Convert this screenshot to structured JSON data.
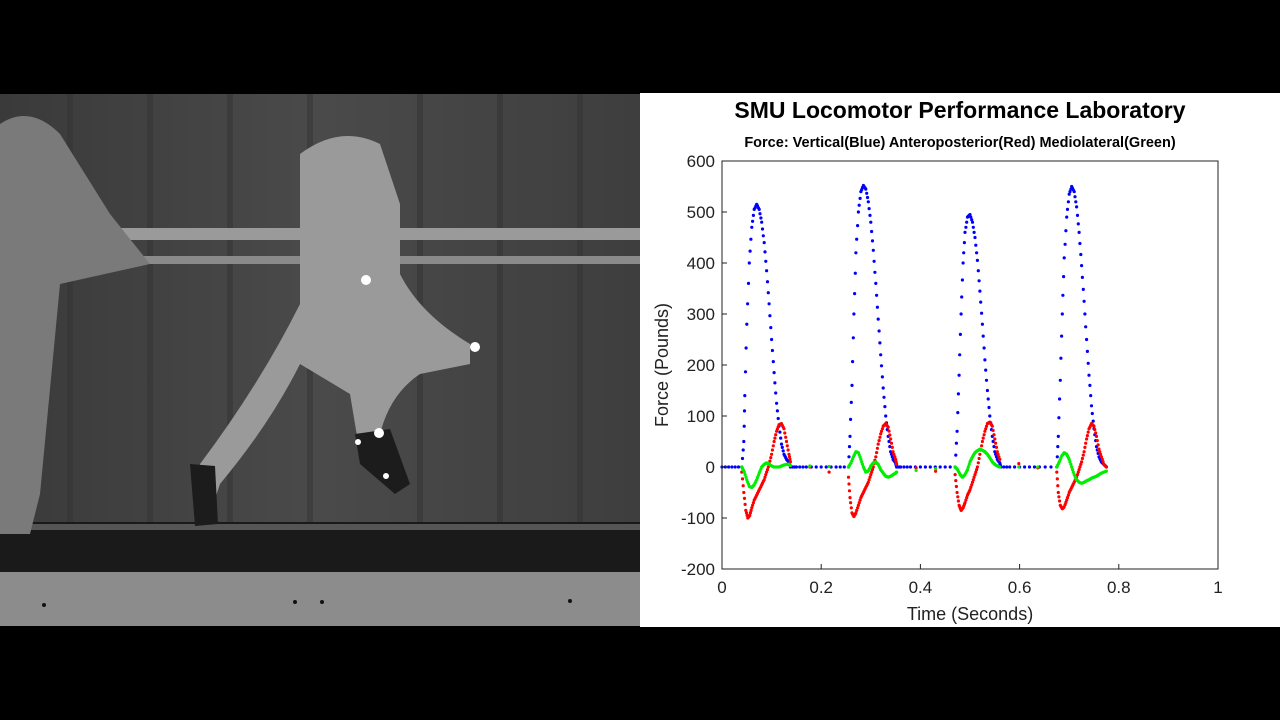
{
  "video": {
    "description_icon": "runner-video-frame-icon",
    "colors": {
      "background": "#2a2a2a",
      "marker": "#ffffff"
    }
  },
  "chart_data": {
    "type": "scatter",
    "title": "SMU Locomotor Performance Laboratory",
    "subtitle": "Force: Vertical(Blue) Anteroposterior(Red) Mediolateral(Green)",
    "xlabel": "Time (Seconds)",
    "ylabel": "Force (Pounds)",
    "xlim": [
      0,
      1
    ],
    "ylim": [
      -200,
      600
    ],
    "xticks": [
      "0",
      "0.2",
      "0.4",
      "0.6",
      "0.8",
      "1"
    ],
    "yticks": [
      "-200",
      "-100",
      "0",
      "100",
      "200",
      "300",
      "400",
      "500",
      "600"
    ],
    "grid": false,
    "series": [
      {
        "color": "#0000ff",
        "x": [
          0.0,
          0.02,
          0.04,
          0.044,
          0.046,
          0.05,
          0.055,
          0.06,
          0.065,
          0.07,
          0.075,
          0.08,
          0.085,
          0.09,
          0.095,
          0.1,
          0.105,
          0.11,
          0.115,
          0.12,
          0.125,
          0.13,
          0.135,
          0.138,
          0.15,
          0.17,
          0.2,
          0.23,
          0.255,
          0.258,
          0.262,
          0.266,
          0.27,
          0.275,
          0.28,
          0.285,
          0.29,
          0.295,
          0.3,
          0.305,
          0.31,
          0.315,
          0.32,
          0.325,
          0.33,
          0.335,
          0.34,
          0.345,
          0.35,
          0.352,
          0.36,
          0.38,
          0.41,
          0.44,
          0.47,
          0.474,
          0.478,
          0.482,
          0.486,
          0.49,
          0.495,
          0.5,
          0.505,
          0.51,
          0.515,
          0.52,
          0.525,
          0.53,
          0.535,
          0.54,
          0.545,
          0.55,
          0.555,
          0.56,
          0.562,
          0.58,
          0.61,
          0.64,
          0.675,
          0.678,
          0.682,
          0.686,
          0.69,
          0.695,
          0.7,
          0.705,
          0.71,
          0.715,
          0.72,
          0.725,
          0.73,
          0.735,
          0.74,
          0.745,
          0.75,
          0.755,
          0.76,
          0.765,
          0.77,
          0.775
        ],
        "y": [
          0,
          0,
          0,
          50,
          140,
          280,
          400,
          470,
          505,
          515,
          505,
          480,
          440,
          385,
          320,
          250,
          185,
          125,
          80,
          45,
          25,
          15,
          10,
          0,
          0,
          0,
          0,
          0,
          0,
          60,
          160,
          300,
          420,
          500,
          540,
          552,
          545,
          520,
          480,
          425,
          360,
          290,
          220,
          155,
          100,
          60,
          30,
          15,
          8,
          0,
          0,
          0,
          0,
          0,
          0,
          70,
          180,
          300,
          400,
          460,
          490,
          495,
          480,
          450,
          405,
          345,
          280,
          210,
          150,
          100,
          60,
          30,
          15,
          8,
          0,
          0,
          0,
          0,
          0,
          60,
          170,
          300,
          410,
          490,
          535,
          550,
          540,
          510,
          460,
          395,
          325,
          250,
          180,
          120,
          75,
          40,
          20,
          10,
          5,
          0
        ]
      },
      {
        "color": "#ff0000",
        "x": [
          0.04,
          0.044,
          0.048,
          0.052,
          0.056,
          0.06,
          0.065,
          0.07,
          0.075,
          0.08,
          0.085,
          0.09,
          0.095,
          0.1,
          0.105,
          0.11,
          0.115,
          0.12,
          0.125,
          0.13,
          0.135,
          0.138,
          0.255,
          0.258,
          0.262,
          0.266,
          0.27,
          0.275,
          0.28,
          0.285,
          0.29,
          0.295,
          0.3,
          0.305,
          0.31,
          0.315,
          0.32,
          0.325,
          0.33,
          0.335,
          0.34,
          0.345,
          0.35,
          0.352,
          0.47,
          0.474,
          0.478,
          0.482,
          0.486,
          0.49,
          0.495,
          0.5,
          0.505,
          0.51,
          0.515,
          0.52,
          0.525,
          0.53,
          0.535,
          0.54,
          0.545,
          0.55,
          0.555,
          0.56,
          0.675,
          0.678,
          0.682,
          0.686,
          0.69,
          0.695,
          0.7,
          0.705,
          0.71,
          0.715,
          0.72,
          0.725,
          0.73,
          0.735,
          0.74,
          0.745,
          0.75,
          0.755,
          0.76,
          0.765,
          0.77,
          0.775
        ],
        "y": [
          -10,
          -50,
          -85,
          -100,
          -95,
          -80,
          -65,
          -55,
          -45,
          -35,
          -25,
          -10,
          5,
          25,
          50,
          70,
          83,
          85,
          75,
          50,
          25,
          10,
          -20,
          -60,
          -90,
          -97,
          -90,
          -75,
          -60,
          -50,
          -40,
          -30,
          -15,
          0,
          20,
          45,
          65,
          80,
          85,
          78,
          55,
          30,
          15,
          5,
          -15,
          -50,
          -75,
          -85,
          -80,
          -70,
          -55,
          -45,
          -30,
          -15,
          0,
          25,
          50,
          70,
          85,
          88,
          80,
          55,
          30,
          15,
          -10,
          -50,
          -75,
          -82,
          -78,
          -65,
          -50,
          -40,
          -30,
          -20,
          -5,
          10,
          30,
          55,
          75,
          85,
          80,
          60,
          35,
          20,
          5,
          0
        ]
      },
      {
        "color": "#00ee00",
        "x": [
          0.04,
          0.045,
          0.05,
          0.055,
          0.06,
          0.065,
          0.07,
          0.075,
          0.08,
          0.085,
          0.09,
          0.095,
          0.1,
          0.105,
          0.11,
          0.115,
          0.12,
          0.125,
          0.13,
          0.135,
          0.138,
          0.255,
          0.26,
          0.265,
          0.27,
          0.275,
          0.28,
          0.285,
          0.29,
          0.295,
          0.3,
          0.305,
          0.31,
          0.315,
          0.32,
          0.325,
          0.33,
          0.335,
          0.34,
          0.345,
          0.35,
          0.352,
          0.47,
          0.475,
          0.48,
          0.485,
          0.49,
          0.495,
          0.5,
          0.505,
          0.51,
          0.515,
          0.52,
          0.525,
          0.53,
          0.535,
          0.54,
          0.545,
          0.55,
          0.555,
          0.56,
          0.675,
          0.68,
          0.685,
          0.69,
          0.695,
          0.7,
          0.705,
          0.71,
          0.715,
          0.72,
          0.725,
          0.73,
          0.735,
          0.74,
          0.745,
          0.75,
          0.755,
          0.76,
          0.765,
          0.77,
          0.775
        ],
        "y": [
          0,
          -10,
          -25,
          -38,
          -40,
          -35,
          -25,
          -12,
          0,
          5,
          8,
          6,
          2,
          0,
          0,
          0,
          2,
          4,
          5,
          5,
          3,
          0,
          8,
          20,
          30,
          28,
          15,
          0,
          -10,
          -8,
          2,
          8,
          10,
          5,
          -5,
          -12,
          -18,
          -20,
          -18,
          -15,
          -12,
          -10,
          0,
          -5,
          -15,
          -20,
          -15,
          -5,
          10,
          20,
          28,
          32,
          35,
          33,
          30,
          25,
          18,
          10,
          5,
          2,
          0,
          0,
          10,
          22,
          28,
          25,
          15,
          0,
          -15,
          -25,
          -30,
          -32,
          -30,
          -27,
          -25,
          -22,
          -20,
          -18,
          -15,
          -12,
          -10,
          -8
        ]
      }
    ]
  }
}
